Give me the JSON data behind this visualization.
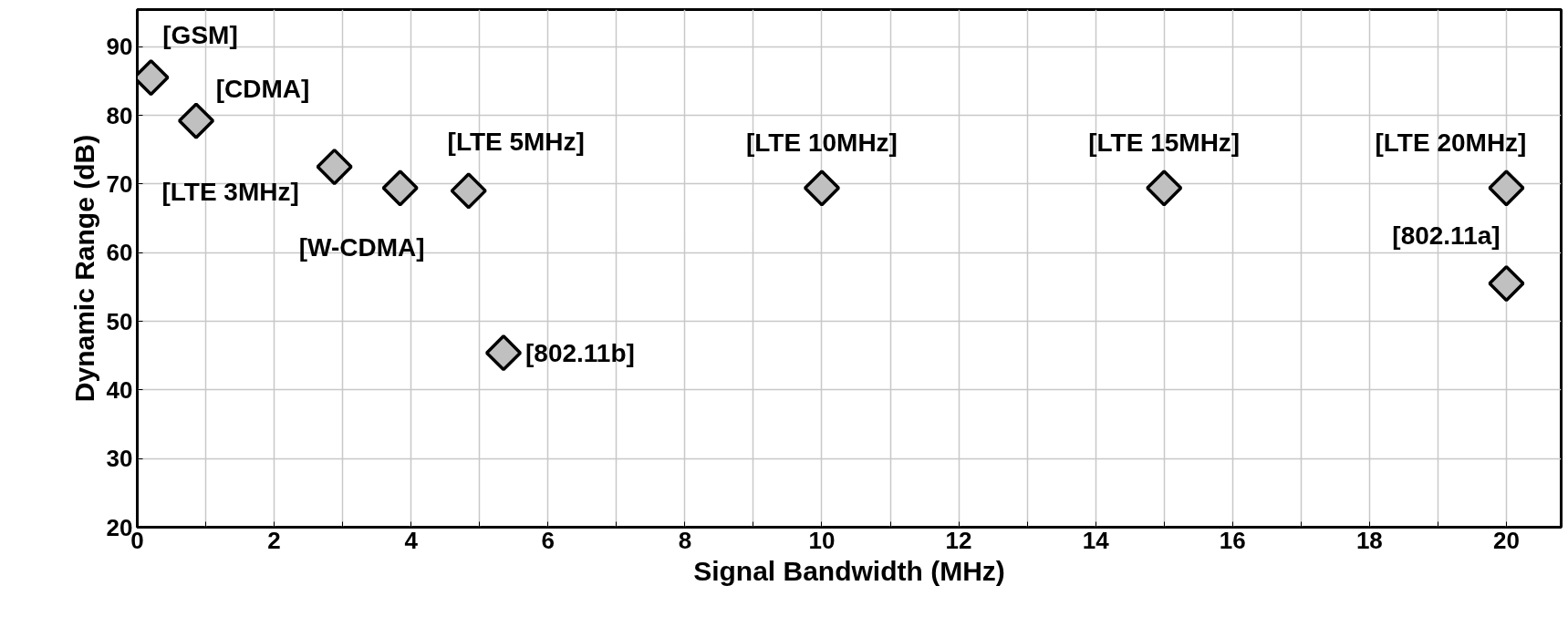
{
  "chart_data": {
    "type": "scatter",
    "xlabel": "Signal Bandwidth (MHz)",
    "ylabel": "Dynamic Range (dB)",
    "x": [
      0.2,
      0.86,
      2.88,
      3.84,
      4.84,
      5.35,
      10,
      15,
      20,
      20
    ],
    "values": [
      85.5,
      79.2,
      72.5,
      69.4,
      69,
      45.4,
      69.4,
      69.4,
      69.4,
      55.5
    ],
    "color": "#c0c0c0",
    "marker": "diamond",
    "grid": true,
    "xlim": [
      0,
      20.8
    ],
    "ylim": [
      20,
      95.4
    ],
    "xticks": [
      0,
      {
        "value": 1,
        "label": null
      },
      2,
      {
        "value": 3,
        "label": null
      },
      4,
      {
        "value": 5,
        "label": null
      },
      6,
      {
        "value": 7,
        "label": null
      },
      8,
      {
        "value": 9,
        "label": null
      },
      10,
      {
        "value": 11,
        "label": null
      },
      12,
      {
        "value": 13,
        "label": null
      },
      14,
      {
        "value": 15,
        "label": null
      },
      16,
      {
        "value": 17,
        "label": null
      },
      18,
      {
        "value": 19,
        "label": null
      },
      20
    ],
    "yticks": [
      20,
      30,
      40,
      50,
      60,
      70,
      80,
      90
    ],
    "annotations": [
      {
        "text": "[GSM]",
        "x": 0.2,
        "y": 85.5
      },
      {
        "text": "[CDMA]",
        "x": 0.86,
        "y": 79.2
      },
      {
        "text": "[LTE 3MHz]",
        "x": 2.88,
        "y": 72.5
      },
      {
        "text": "[W-CDMA]",
        "x": 3.84,
        "y": 69.4
      },
      {
        "text": "[LTE 5MHz]",
        "x": 4.84,
        "y": 69
      },
      {
        "text": "[802.11b]",
        "x": 5.35,
        "y": 45.4
      },
      {
        "text": "[LTE 10MHz]",
        "x": 10,
        "y": 69.4
      },
      {
        "text": "[LTE 15MHz]",
        "x": 15,
        "y": 69.4
      },
      {
        "text": "[LTE 20MHz]",
        "x": 20,
        "y": 69.4
      },
      {
        "text": "[802.11a]",
        "x": 20,
        "y": 55.5
      }
    ]
  }
}
